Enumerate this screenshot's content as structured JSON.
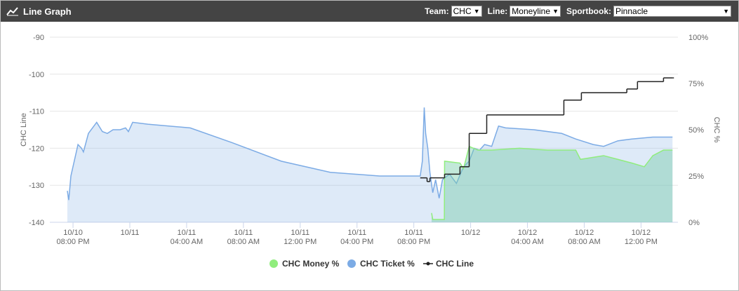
{
  "header": {
    "title": "Line Graph",
    "filters": [
      {
        "label": "Team:",
        "value": "CHC"
      },
      {
        "label": "Line:",
        "value": "Moneyline"
      },
      {
        "label": "Sportbook:",
        "value": "Pinnacle"
      }
    ]
  },
  "chart_data": {
    "type": "line",
    "y_label": "CHC Line",
    "y2_label": "CHC %",
    "ylim": [
      -140,
      -90
    ],
    "yticks": [
      -90,
      -100,
      -110,
      -120,
      -130,
      -140
    ],
    "y2lim": [
      0,
      100
    ],
    "y2ticks": [
      {
        "value": 0,
        "label": "0%"
      },
      {
        "value": 25,
        "label": "25%"
      },
      {
        "value": 50,
        "label": "50%"
      },
      {
        "value": 75,
        "label": "75%"
      },
      {
        "value": 100,
        "label": "100%"
      }
    ],
    "xlim": [
      "10/10 06:22 PM",
      "10/12 02:36 PM"
    ],
    "xticks": [
      {
        "value": "10/10 08:00 PM",
        "label": [
          "10/10",
          "08:00 PM"
        ]
      },
      {
        "value": "10/11 12:00 AM",
        "label": [
          "10/11"
        ]
      },
      {
        "value": "10/11 04:00 AM",
        "label": [
          "10/11",
          "04:00 AM"
        ]
      },
      {
        "value": "10/11 08:00 AM",
        "label": [
          "10/11",
          "08:00 AM"
        ]
      },
      {
        "value": "10/11 12:00 PM",
        "label": [
          "10/11",
          "12:00 PM"
        ]
      },
      {
        "value": "10/11 04:00 PM",
        "label": [
          "10/11",
          "04:00 PM"
        ]
      },
      {
        "value": "10/11 08:00 PM",
        "label": [
          "10/11",
          "08:00 PM"
        ]
      },
      {
        "value": "10/12 12:00 AM",
        "label": [
          "10/12"
        ]
      },
      {
        "value": "10/12 04:00 AM",
        "label": [
          "10/12",
          "04:00 AM"
        ]
      },
      {
        "value": "10/12 08:00 AM",
        "label": [
          "10/12",
          "08:00 AM"
        ]
      },
      {
        "value": "10/12 12:00 PM",
        "label": [
          "10/12",
          "12:00 PM"
        ]
      }
    ],
    "grid": true,
    "series": [
      {
        "name": "CHC Money %",
        "color": "#90ed7d",
        "fill": "rgba(120,205,170,0.45)",
        "axis": "y2",
        "area": true,
        "x": [
          "10/11 09:15 PM",
          "10/11 09:20 PM",
          "10/11 10:09 PM",
          "10/11 10:10 PM",
          "10/11 11:15 PM",
          "10/11 11:30 PM",
          "10/11 11:54 PM",
          "10/12 12:30 AM",
          "10/12 01:29 AM",
          "10/12 03:27 AM",
          "10/12 05:25 AM",
          "10/12 07:24 AM",
          "10/12 07:44 AM",
          "10/12 09:22 AM",
          "10/12 10:22 AM",
          "10/12 11:21 AM",
          "10/12 12:14 PM",
          "10/12 12:50 PM",
          "10/12 01:35 PM",
          "10/12 02:13 PM"
        ],
        "values": [
          5,
          1.5,
          1.5,
          33,
          32,
          29,
          41,
          39,
          39,
          40,
          39,
          39,
          34,
          36,
          34,
          32,
          30,
          36,
          39,
          39
        ]
      },
      {
        "name": "CHC Ticket %",
        "color": "#7cabe5",
        "fill": "rgba(124,171,229,0.25)",
        "axis": "y2",
        "area": true,
        "x": [
          "10/10 07:36 PM",
          "10/10 07:42 PM",
          "10/10 07:51 PM",
          "10/10 08:21 PM",
          "10/10 08:36 PM",
          "10/10 08:44 PM",
          "10/10 09:05 PM",
          "10/10 09:40 PM",
          "10/10 10:04 PM",
          "10/10 10:25 PM",
          "10/10 10:49 PM",
          "10/10 11:19 PM",
          "10/10 11:42 PM",
          "10/10 11:54 PM",
          "10/11 12:12 AM",
          "10/11 01:16 AM",
          "10/11 04:15 AM",
          "10/11 07:12 AM",
          "10/11 10:40 AM",
          "10/11 02:07 PM",
          "10/11 05:35 PM",
          "10/11 08:27 PM",
          "10/11 08:36 PM",
          "10/11 08:44 PM",
          "10/11 08:50 PM",
          "10/11 08:59 PM",
          "10/11 09:08 PM",
          "10/11 09:20 PM",
          "10/11 09:32 PM",
          "10/11 09:47 PM",
          "10/11 10:01 PM",
          "10/11 10:31 PM",
          "10/11 11:00 PM",
          "10/11 11:30 PM",
          "10/11 11:54 PM",
          "10/12 12:15 AM",
          "10/12 12:38 AM",
          "10/12 12:59 AM",
          "10/12 01:29 AM",
          "10/12 01:58 AM",
          "10/12 02:28 AM",
          "10/12 04:27 AM",
          "10/12 06:25 AM",
          "10/12 07:24 AM",
          "10/12 08:38 AM",
          "10/12 09:22 AM",
          "10/12 10:22 AM",
          "10/12 11:21 AM",
          "10/12 12:50 PM",
          "10/12 02:13 PM"
        ],
        "values": [
          17,
          12,
          25,
          42,
          40,
          38,
          48,
          54,
          49,
          48,
          50,
          50,
          51,
          49,
          54,
          53,
          51,
          43,
          33,
          27,
          25,
          25,
          33,
          62,
          48,
          40,
          27,
          16,
          23,
          13,
          23,
          26,
          21,
          30,
          33,
          40,
          39,
          42,
          41,
          52,
          51,
          50,
          48,
          45,
          42,
          41,
          44,
          45,
          46,
          46
        ]
      },
      {
        "name": "CHC Line",
        "color": "#222222",
        "axis": "y",
        "step": true,
        "x": [
          "10/11 08:27 PM",
          "10/11 08:56 PM",
          "10/11 09:08 PM",
          "10/11 10:10 PM",
          "10/11 11:15 PM",
          "10/11 11:54 PM",
          "10/12 01:08 AM",
          "10/12 06:34 AM",
          "10/12 07:48 AM",
          "10/12 11:00 AM",
          "10/12 11:45 AM",
          "10/12 01:35 PM",
          "10/12 02:13 PM"
        ],
        "values": [
          -128,
          -129,
          -128,
          -127,
          -125,
          -116,
          -111,
          -107,
          -105,
          -104,
          -102,
          -101,
          -101
        ]
      }
    ]
  }
}
